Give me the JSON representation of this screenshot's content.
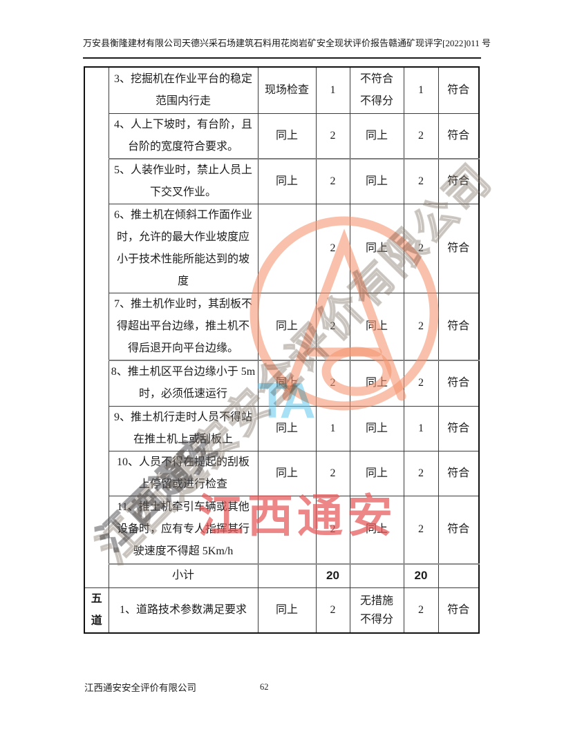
{
  "header": {
    "title": "万安县衡隆建材有限公司天德兴采石场建筑石料用花岗岩矿安全现状评价报告",
    "doc_number": "赣通矿现评字[2022]011 号"
  },
  "table": {
    "rows": [
      {
        "category": "",
        "item": "3、挖掘机在作业平台的稳定\n范围内行走",
        "method": "现场检查",
        "score": "1",
        "criteria": "不符合\n不得分",
        "score2": "1",
        "result": "符合",
        "kind": "item"
      },
      {
        "category": "",
        "item": "4、人上下坡时，有台阶，且\n台阶的宽度符合要求。",
        "method": "同上",
        "score": "2",
        "criteria": "同上",
        "score2": "2",
        "result": "符合",
        "kind": "item"
      },
      {
        "category": "",
        "item": "5、人装作业时，禁止人员上\n下交叉作业。",
        "method": "同上",
        "score": "2",
        "criteria": "同上",
        "score2": "2",
        "result": "符合",
        "kind": "item"
      },
      {
        "category": "",
        "item": "6、推土机在倾斜工作面作业\n时，允许的最大作业坡度应\n小于技术性能所能达到的坡\n度",
        "method": "",
        "score": "2",
        "criteria": "同上",
        "score2": "2",
        "result": "符合",
        "kind": "item"
      },
      {
        "category": "",
        "item": "7、推土机作业时，其刮板不\n得超出平台边缘，推土机不\n得后退开向平台边缘。",
        "method": "同上",
        "score": "2",
        "criteria": "同上",
        "score2": "2",
        "result": "符合",
        "kind": "item"
      },
      {
        "category": "",
        "item": "8、推土机区平台边缘小于 5m\n时，必须低速运行",
        "method": "同上",
        "score": "2",
        "criteria": "同上",
        "score2": "2",
        "result": "符合",
        "kind": "item"
      },
      {
        "category": "",
        "item": "9、推土机行走时人员不得站\n在推土机上或刮板上",
        "method": "同上",
        "score": "1",
        "criteria": "同上",
        "score2": "1",
        "result": "符合",
        "kind": "item"
      },
      {
        "category": "",
        "item": "10、人员不得在提起的刮板\n上停留或进行检查",
        "method": "同上",
        "score": "2",
        "criteria": "同上",
        "score2": "2",
        "result": "符合",
        "kind": "item"
      },
      {
        "category": "",
        "item": "11、推土机牵引车辆或其他\n设备时，应有专人指挥其行\n驶速度不得超 5Km/h",
        "method": "",
        "score": "2",
        "criteria": "同上",
        "score2": "2",
        "result": "符合",
        "kind": "item"
      },
      {
        "category": "",
        "item": "小计",
        "method": "",
        "score": "20",
        "criteria": "",
        "score2": "20",
        "result": "",
        "kind": "subtotal"
      },
      {
        "category": "五\n道",
        "item": "1、道路技术参数满足要求",
        "method": "同上",
        "score": "2",
        "criteria": "无措施\n不得分",
        "score2": "2",
        "result": "符合",
        "kind": "category-item"
      }
    ]
  },
  "footer": {
    "company": "江西通安安全评价有限公司",
    "page_number": "62"
  },
  "watermark": {
    "diagonal_text": "江西通安安全评价有限公司",
    "corner_text": "江西通安",
    "red_text": "江西通安",
    "logo_letters": "TA",
    "colors": {
      "salmon": "#F49470",
      "cyan": "#60C8EE",
      "red": "#E65858",
      "outline_gray": "#87786E"
    }
  }
}
